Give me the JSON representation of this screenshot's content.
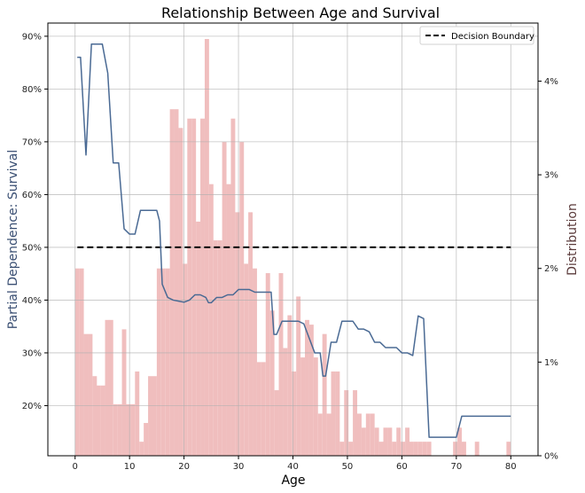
{
  "chart_data": {
    "type": "line",
    "title": "Relationship Between Age and Survival",
    "xlabel": "Age",
    "ylabel": "Partial Dependence: Survival",
    "y2label": "Distribution",
    "xlim": [
      -5,
      85
    ],
    "ylim": [
      0.105,
      0.925
    ],
    "y2lim": [
      0,
      4.62
    ],
    "x_ticks": [
      0,
      10,
      20,
      30,
      40,
      50,
      60,
      70,
      80
    ],
    "x_tick_labels": [
      "0",
      "10",
      "20",
      "30",
      "40",
      "50",
      "60",
      "70",
      "80"
    ],
    "y_ticks": [
      0.2,
      0.3,
      0.4,
      0.5,
      0.6,
      0.7,
      0.8,
      0.9
    ],
    "y_tick_labels": [
      "20%",
      "30%",
      "40%",
      "50%",
      "60%",
      "70%",
      "80%",
      "90%"
    ],
    "y2_ticks": [
      0,
      1,
      2,
      3,
      4
    ],
    "y2_tick_labels": [
      "0%",
      "1%",
      "2%",
      "3%",
      "4%"
    ],
    "grid": true,
    "legend": {
      "position": "top-right",
      "entries": [
        "Decision Boundary"
      ]
    },
    "colors": {
      "line": "#4a6a94",
      "hist": "#f0bebe",
      "boundary": "#000000"
    },
    "decision_boundary": {
      "y": 0.5,
      "x_range": [
        0.42,
        80
      ]
    },
    "series": [
      {
        "name": "",
        "x": [
          0.4,
          1.0,
          2.0,
          3.0,
          5.0,
          6.0,
          7.0,
          8.0,
          9.0,
          10.0,
          11.0,
          12.0,
          13.0,
          14.0,
          15.0,
          15.5,
          16.0,
          17.0,
          18.0,
          19.0,
          20.0,
          21.0,
          22.0,
          23.0,
          24.0,
          24.5,
          25.0,
          26.0,
          27.0,
          28.0,
          29.0,
          30.0,
          31.0,
          32.0,
          33.0,
          34.0,
          35.0,
          36.0,
          36.5,
          37.0,
          38.0,
          39.0,
          40.0,
          41.0,
          42.0,
          44.0,
          45.0,
          45.5,
          46.0,
          47.0,
          48.0,
          49.0,
          50.0,
          51.0,
          52.0,
          53.0,
          54.0,
          55.0,
          56.0,
          57.0,
          58.0,
          59.0,
          60.0,
          61.0,
          62.0,
          63.0,
          64.0,
          65.0,
          66.0,
          67.0,
          68.0,
          69.0,
          70.0,
          71.0,
          80.0
        ],
        "y": [
          0.86,
          0.86,
          0.675,
          0.885,
          0.885,
          0.83,
          0.66,
          0.66,
          0.535,
          0.525,
          0.525,
          0.57,
          0.57,
          0.57,
          0.57,
          0.55,
          0.43,
          0.405,
          0.4,
          0.398,
          0.396,
          0.4,
          0.41,
          0.41,
          0.405,
          0.395,
          0.395,
          0.405,
          0.405,
          0.41,
          0.41,
          0.42,
          0.42,
          0.42,
          0.415,
          0.415,
          0.415,
          0.415,
          0.335,
          0.335,
          0.36,
          0.36,
          0.36,
          0.36,
          0.355,
          0.3,
          0.3,
          0.256,
          0.256,
          0.32,
          0.32,
          0.36,
          0.36,
          0.36,
          0.345,
          0.345,
          0.34,
          0.32,
          0.32,
          0.31,
          0.31,
          0.31,
          0.3,
          0.3,
          0.295,
          0.37,
          0.365,
          0.14,
          0.14,
          0.14,
          0.14,
          0.14,
          0.14,
          0.18,
          0.18
        ]
      }
    ],
    "histogram": {
      "bin_start": 0,
      "bin_width": 0.83,
      "values": [
        2.0,
        2.0,
        1.3,
        1.3,
        0.75,
        0.75,
        1.45,
        1.45,
        0.55,
        0.55,
        0.55,
        0.55,
        0.55,
        0.55,
        1.35,
        1.35,
        0.6,
        0.6,
        0.6,
        0.9,
        0.9,
        0.9,
        0.3,
        0.3,
        0.55,
        0.55,
        0.15,
        0.15,
        0.15,
        0.35,
        0.35,
        0.35,
        0.85,
        0.85,
        0.85,
        0.85,
        2.0,
        2.0,
        2.0,
        3.7,
        3.7,
        3.7,
        2.05,
        2.05,
        3.6,
        3.6,
        2.5,
        2.5,
        3.6,
        3.6,
        2.5,
        2.5,
        4.45,
        4.45,
        2.9,
        2.9,
        2.3,
        2.3,
        2.3,
        3.35,
        3.35,
        2.9,
        2.9,
        3.6,
        3.6,
        2.6,
        2.6,
        3.35,
        3.35,
        2.05,
        2.05,
        2.6,
        2.6,
        2.0,
        2.0,
        1.0,
        1.0,
        1.0,
        1.95,
        1.95,
        1.55,
        1.55,
        1.55,
        0.7,
        0.7,
        1.95,
        1.95,
        1.15,
        1.15,
        1.5,
        1.5,
        0.9,
        0.9,
        1.7,
        1.7,
        1.05,
        1.05,
        1.45,
        1.45,
        1.4,
        1.4,
        1.05,
        1.05,
        0.45,
        0.45,
        1.3,
        1.3,
        0.45,
        0.45,
        0.9,
        0.9,
        0.9,
        0.9,
        0.15,
        0.15,
        0.7,
        0.7,
        0.15,
        0.15,
        0.7,
        0.7,
        0.45,
        0.45,
        0.3,
        0.3,
        0.45,
        0.45,
        0.45,
        0.3,
        0.3,
        0.15,
        0.15,
        0.3,
        0.3,
        0.3,
        0.15,
        0.15,
        0.15,
        0.0,
        0.0,
        0.0,
        0.0,
        0.0,
        0.0,
        0.0,
        0.0,
        0.0,
        0.0,
        0.0,
        0.0,
        0.0,
        0.0,
        0.0,
        0.0,
        0.0,
        0.0,
        0.0,
        0.0,
        0.0,
        0.0,
        0.0,
        0.0,
        0.0,
        0.0,
        0.0,
        0.0,
        0.0,
        0.0,
        0.0,
        0.0,
        0.0,
        0.0,
        0.0,
        0.0,
        0.0,
        0.0,
        0.0,
        0.0,
        0.0,
        0.0,
        0.0,
        0.0,
        0.0,
        0.0,
        0.0,
        0.0,
        0.0
      ]
    },
    "histogram_points": [
      {
        "x": 0.4,
        "h": 2.0
      },
      {
        "x": 1.2,
        "h": 2.0
      },
      {
        "x": 2.0,
        "h": 1.3
      },
      {
        "x": 2.8,
        "h": 1.3
      },
      {
        "x": 3.6,
        "h": 0.85
      },
      {
        "x": 4.3,
        "h": 0.75
      },
      {
        "x": 5.1,
        "h": 0.75
      },
      {
        "x": 5.9,
        "h": 1.45
      },
      {
        "x": 6.6,
        "h": 1.45
      },
      {
        "x": 7.4,
        "h": 0.55
      },
      {
        "x": 8.2,
        "h": 0.55
      },
      {
        "x": 9.0,
        "h": 1.35
      },
      {
        "x": 9.8,
        "h": 0.55
      },
      {
        "x": 10.6,
        "h": 0.55
      },
      {
        "x": 11.4,
        "h": 0.9
      },
      {
        "x": 12.2,
        "h": 0.15
      },
      {
        "x": 13.0,
        "h": 0.35
      },
      {
        "x": 13.8,
        "h": 0.85
      },
      {
        "x": 14.6,
        "h": 0.85
      },
      {
        "x": 15.4,
        "h": 2.0
      },
      {
        "x": 16.2,
        "h": 2.0
      },
      {
        "x": 17.0,
        "h": 2.0
      },
      {
        "x": 17.8,
        "h": 3.7
      },
      {
        "x": 18.6,
        "h": 3.7
      },
      {
        "x": 19.4,
        "h": 3.5
      },
      {
        "x": 20.2,
        "h": 2.05
      },
      {
        "x": 21.0,
        "h": 3.6
      },
      {
        "x": 21.8,
        "h": 3.6
      },
      {
        "x": 22.6,
        "h": 2.5
      },
      {
        "x": 23.4,
        "h": 3.6
      },
      {
        "x": 24.2,
        "h": 4.45
      },
      {
        "x": 25.0,
        "h": 2.9
      },
      {
        "x": 25.8,
        "h": 2.3
      },
      {
        "x": 26.6,
        "h": 2.3
      },
      {
        "x": 27.4,
        "h": 3.35
      },
      {
        "x": 28.2,
        "h": 2.9
      },
      {
        "x": 29.0,
        "h": 3.6
      },
      {
        "x": 29.8,
        "h": 2.6
      },
      {
        "x": 30.6,
        "h": 3.35
      },
      {
        "x": 31.4,
        "h": 2.05
      },
      {
        "x": 32.2,
        "h": 2.6
      },
      {
        "x": 33.0,
        "h": 2.0
      },
      {
        "x": 33.8,
        "h": 1.0
      },
      {
        "x": 34.6,
        "h": 1.0
      },
      {
        "x": 35.4,
        "h": 1.95
      },
      {
        "x": 36.2,
        "h": 1.55
      },
      {
        "x": 37.0,
        "h": 0.7
      },
      {
        "x": 37.8,
        "h": 1.95
      },
      {
        "x": 38.6,
        "h": 1.15
      },
      {
        "x": 39.4,
        "h": 1.5
      },
      {
        "x": 40.2,
        "h": 0.9
      },
      {
        "x": 41.0,
        "h": 1.7
      },
      {
        "x": 41.8,
        "h": 1.05
      },
      {
        "x": 42.6,
        "h": 1.45
      },
      {
        "x": 43.4,
        "h": 1.4
      },
      {
        "x": 44.2,
        "h": 1.05
      },
      {
        "x": 45.0,
        "h": 0.45
      },
      {
        "x": 45.8,
        "h": 1.3
      },
      {
        "x": 46.6,
        "h": 0.45
      },
      {
        "x": 47.4,
        "h": 0.9
      },
      {
        "x": 48.2,
        "h": 0.9
      },
      {
        "x": 49.0,
        "h": 0.15
      },
      {
        "x": 49.8,
        "h": 0.7
      },
      {
        "x": 50.6,
        "h": 0.15
      },
      {
        "x": 51.4,
        "h": 0.7
      },
      {
        "x": 52.2,
        "h": 0.45
      },
      {
        "x": 53.0,
        "h": 0.3
      },
      {
        "x": 53.8,
        "h": 0.45
      },
      {
        "x": 54.6,
        "h": 0.45
      },
      {
        "x": 55.4,
        "h": 0.3
      },
      {
        "x": 56.2,
        "h": 0.15
      },
      {
        "x": 57.0,
        "h": 0.3
      },
      {
        "x": 57.8,
        "h": 0.3
      },
      {
        "x": 58.6,
        "h": 0.15
      },
      {
        "x": 59.4,
        "h": 0.3
      },
      {
        "x": 60.2,
        "h": 0.15
      },
      {
        "x": 61.0,
        "h": 0.3
      },
      {
        "x": 61.8,
        "h": 0.15
      },
      {
        "x": 62.6,
        "h": 0.15
      },
      {
        "x": 63.4,
        "h": 0.15
      },
      {
        "x": 64.2,
        "h": 0.15
      },
      {
        "x": 65.0,
        "h": 0.15
      },
      {
        "x": 65.8,
        "h": 0.0
      },
      {
        "x": 66.6,
        "h": 0.0
      },
      {
        "x": 69.8,
        "h": 0.15
      },
      {
        "x": 70.6,
        "h": 0.3
      },
      {
        "x": 71.4,
        "h": 0.15
      },
      {
        "x": 73.8,
        "h": 0.15
      },
      {
        "x": 79.6,
        "h": 0.15
      }
    ]
  }
}
